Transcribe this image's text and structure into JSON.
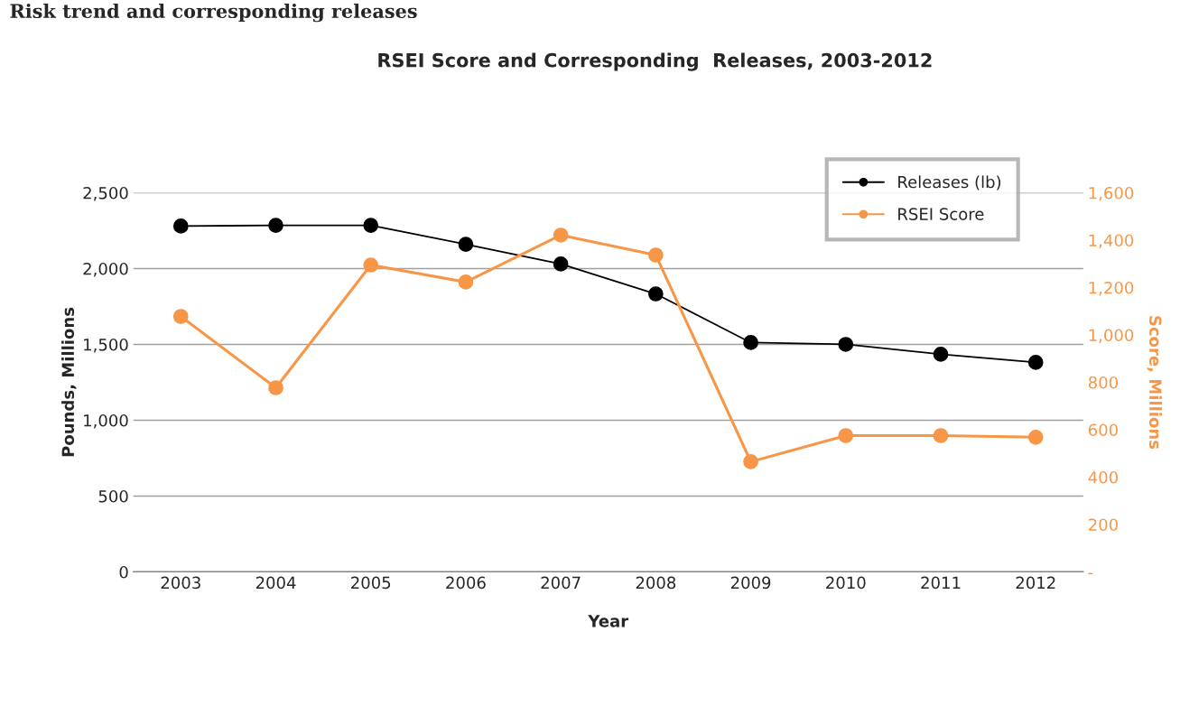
{
  "chart_data": {
    "type": "line",
    "title": "RSEI Score and Corresponding  Releases, 2003-2012",
    "annotations": [
      "Risk trend and corresponding releases"
    ],
    "xlabel": "Year",
    "ylabel": "Pounds, Millions",
    "y2label": "Score, Millions",
    "categories": [
      "2003",
      "2004",
      "2005",
      "2006",
      "2007",
      "2008",
      "2009",
      "2010",
      "2011",
      "2012"
    ],
    "series": [
      {
        "name": "Releases (lb)",
        "color": "#000000",
        "values": [
          2280,
          2285,
          2285,
          2160,
          2030,
          1833,
          1512,
          1500,
          1435,
          1381
        ]
      },
      {
        "name": "RSEI Score",
        "color": "#f79646",
        "axis": "y2",
        "values": [
          1078,
          777,
          1295,
          1223,
          1421,
          1337,
          465,
          575,
          575,
          568
        ]
      }
    ],
    "ylim": [
      0,
      2500
    ],
    "yticks": [
      0,
      500,
      {
        "value": 1000,
        "label": "1,000"
      },
      {
        "value": 1500,
        "label": "1,500"
      },
      {
        "value": 2000,
        "label": "2,000"
      },
      {
        "value": 2500,
        "label": "2,500"
      }
    ],
    "y2lim": [
      0,
      1600
    ],
    "y2ticks": [
      {
        "value": 0,
        "label": "-"
      },
      200,
      400,
      600,
      800,
      {
        "value": 1000,
        "label": "1,000"
      },
      {
        "value": 1200,
        "label": "1,200"
      },
      {
        "value": 1400,
        "label": "1,400"
      },
      {
        "value": 1600,
        "label": "1,600"
      }
    ],
    "grid": "y",
    "legend": "top right",
    "marker": "circle",
    "line_style": "solid"
  }
}
